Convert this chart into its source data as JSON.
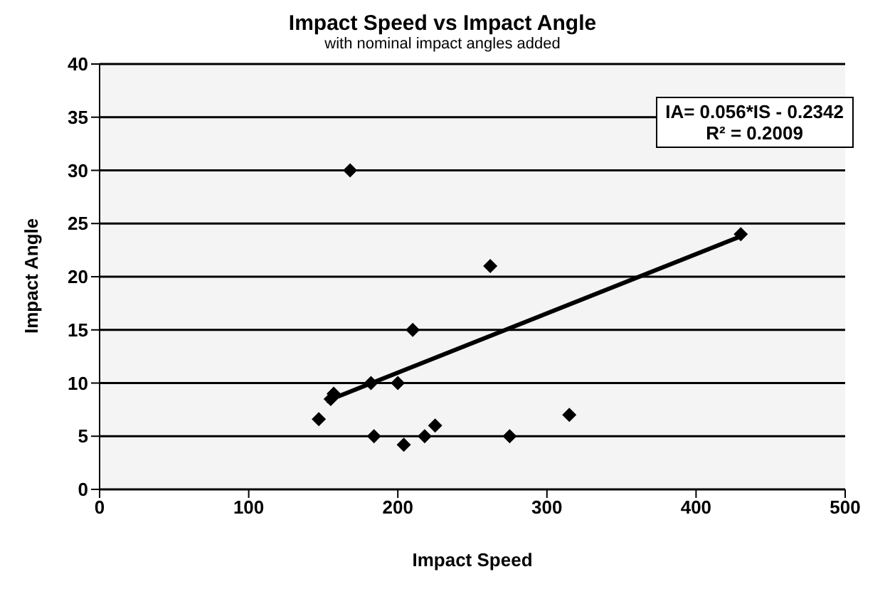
{
  "chart_data": {
    "type": "scatter",
    "title": "Impact Speed vs Impact Angle",
    "subtitle": "with nominal impact angles added",
    "xlabel": "Impact Speed",
    "ylabel": "Impact Angle",
    "annotations": [
      "IA= 0.056*IS - 0.2342",
      "R² = 0.2009"
    ],
    "series": [
      {
        "color": "#000000",
        "marker": "diamond",
        "x": [
          147,
          155,
          157,
          168,
          182,
          184,
          200,
          204,
          210,
          218,
          225,
          262,
          275,
          315,
          430
        ],
        "values": [
          6.6,
          8.5,
          9,
          30,
          10,
          5,
          10,
          4.2,
          15,
          5,
          6,
          21,
          5,
          7,
          24
        ]
      },
      {
        "type": "line",
        "color": "#000000",
        "line_style": "solid",
        "x": [
          152,
          430
        ],
        "values": [
          8.3,
          23.8
        ]
      }
    ],
    "xlim": [
      0,
      500
    ],
    "xticks": [
      0,
      100,
      200,
      300,
      400,
      500
    ],
    "ylim": [
      0,
      40
    ],
    "yticks": [
      0,
      5,
      10,
      15,
      20,
      25,
      30,
      35,
      40
    ],
    "grid": "y"
  }
}
